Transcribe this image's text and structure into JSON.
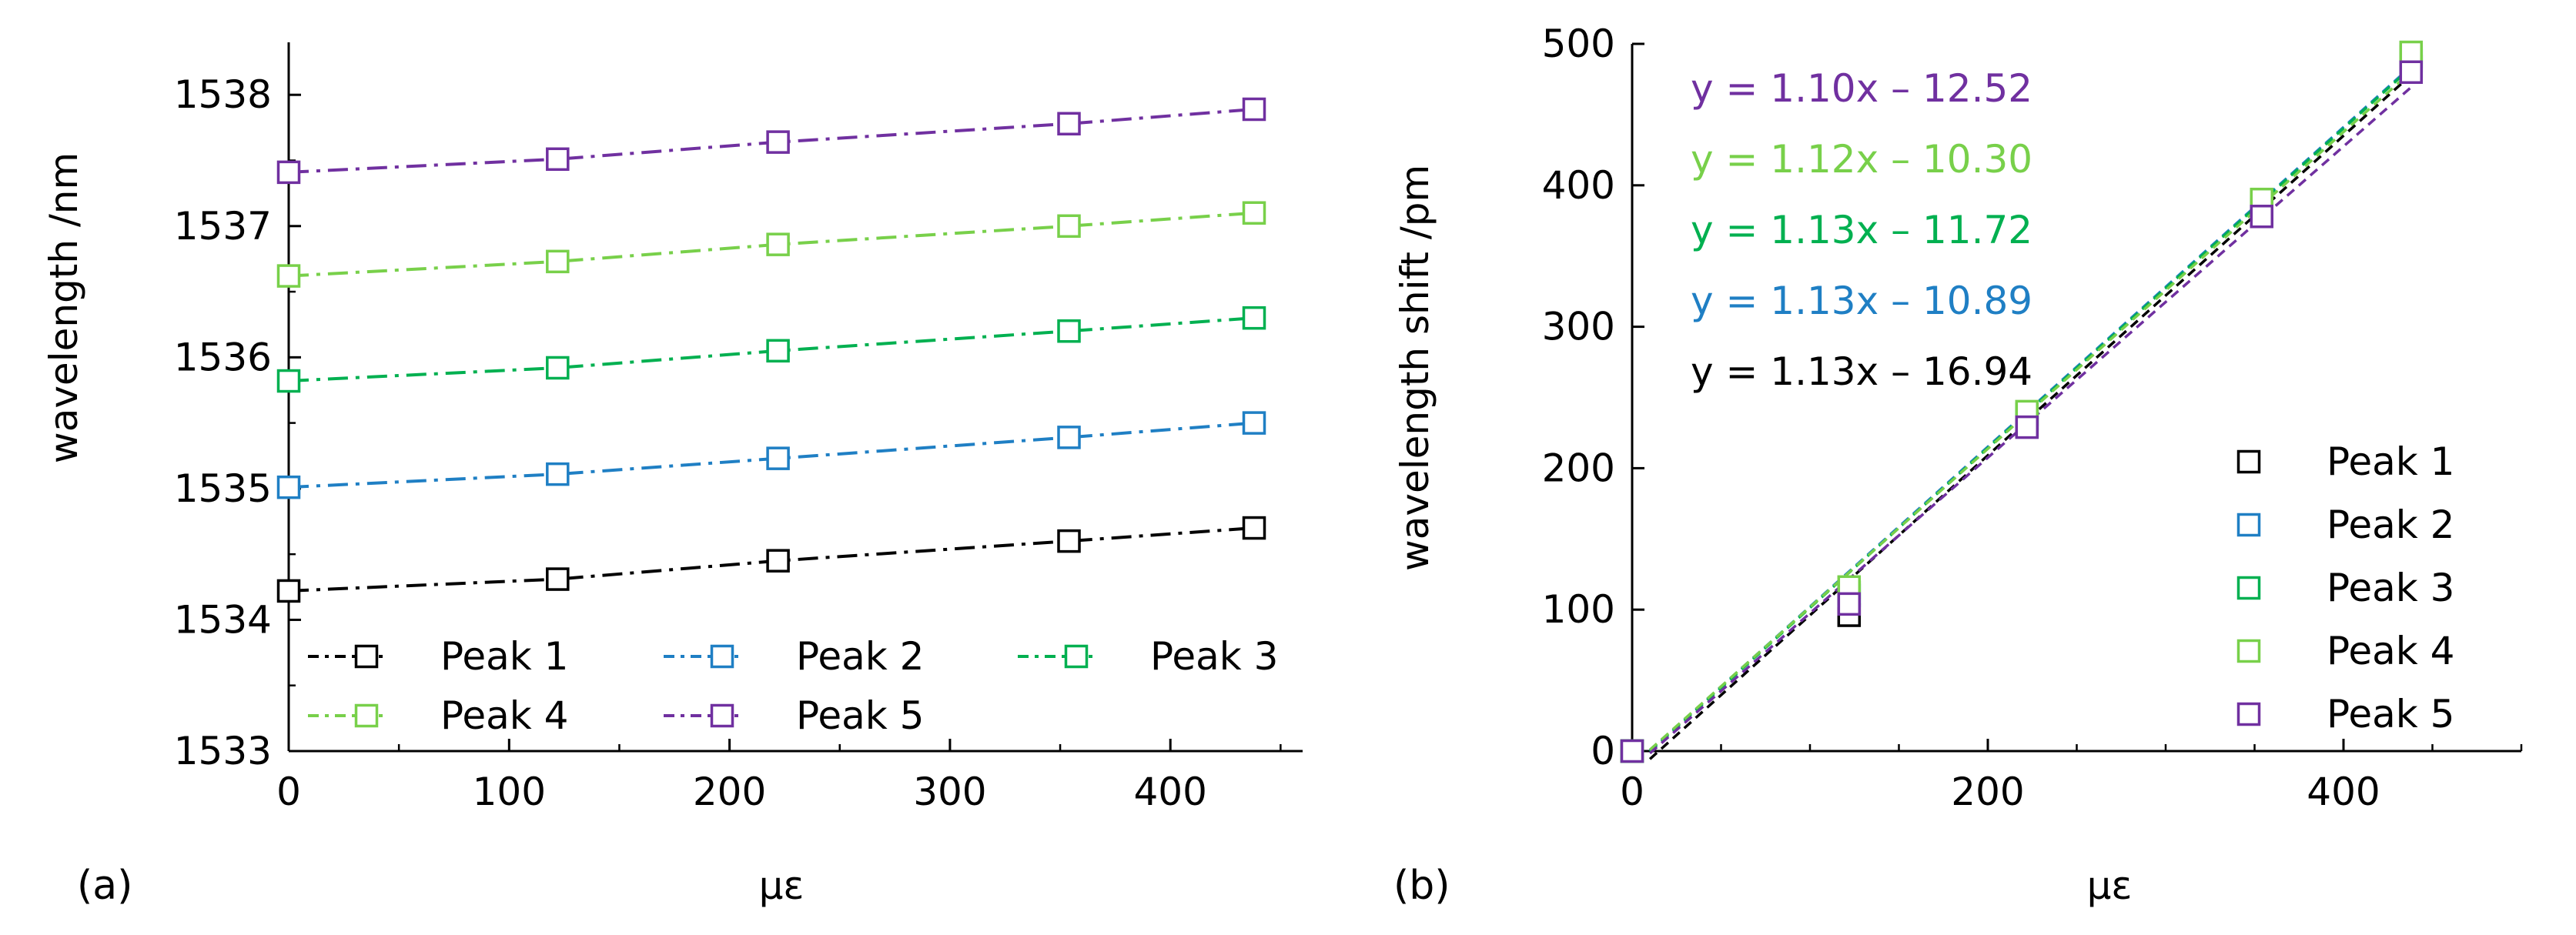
{
  "colors": {
    "peak1": "#000000",
    "peak2": "#1f7fc4",
    "peak3": "#00b050",
    "peak4": "#78d04a",
    "peak5": "#7030a0",
    "axis": "#000000",
    "background": "#ffffff"
  },
  "chart_data": [
    {
      "panel_label": "(a)",
      "type": "line",
      "title": "",
      "xlabel": "με",
      "ylabel": "wavelength /nm",
      "xlim": [
        0,
        460
      ],
      "ylim": [
        1533,
        1538.4
      ],
      "xticks": [
        0,
        100,
        200,
        300,
        400
      ],
      "xtick_labels": [
        "0",
        "100",
        "200",
        "300",
        "400"
      ],
      "yticks": [
        1533,
        1534,
        1535,
        1536,
        1537,
        1538
      ],
      "ytick_labels": [
        "1533",
        "1534",
        "1535",
        "1536",
        "1537",
        "1538"
      ],
      "marker": "open-square",
      "linestyle": "dash-dot",
      "legend_position": "bottom",
      "x": [
        0,
        122,
        222,
        354,
        438
      ],
      "series": [
        {
          "name": "Peak 1",
          "color_key": "peak1",
          "values": [
            1534.22,
            1534.31,
            1534.45,
            1534.6,
            1534.7
          ]
        },
        {
          "name": "Peak 2",
          "color_key": "peak2",
          "values": [
            1535.01,
            1535.11,
            1535.23,
            1535.39,
            1535.5
          ]
        },
        {
          "name": "Peak 3",
          "color_key": "peak3",
          "values": [
            1535.82,
            1535.92,
            1536.05,
            1536.2,
            1536.3
          ]
        },
        {
          "name": "Peak 4",
          "color_key": "peak4",
          "values": [
            1536.62,
            1536.73,
            1536.86,
            1537.0,
            1537.1
          ]
        },
        {
          "name": "Peak 5",
          "color_key": "peak5",
          "values": [
            1537.41,
            1537.51,
            1537.64,
            1537.78,
            1537.89
          ]
        }
      ]
    },
    {
      "panel_label": "(b)",
      "type": "scatter",
      "title": "",
      "xlabel": "με",
      "ylabel": "wavelength shift /pm",
      "xlim": [
        0,
        500
      ],
      "ylim": [
        0,
        500
      ],
      "xticks": [
        0,
        200,
        400
      ],
      "xtick_labels": [
        "0",
        "200",
        "400"
      ],
      "x_minor_ticks": [
        50,
        100,
        150,
        250,
        300,
        350,
        450,
        500
      ],
      "yticks": [
        0,
        100,
        200,
        300,
        400,
        500
      ],
      "ytick_labels": [
        "0",
        "100",
        "200",
        "300",
        "400",
        "500"
      ],
      "marker": "open-square",
      "fit_linestyle": "dashed",
      "legend_position": "bottom-right",
      "x": [
        0,
        122,
        222,
        354,
        438
      ],
      "series": [
        {
          "name": "Peak 1",
          "color_key": "peak1",
          "values": [
            0,
            96,
            230,
            383,
            484
          ],
          "fit": {
            "slope": 1.13,
            "intercept": -16.94,
            "equation": "y = 1.13x – 16.94"
          }
        },
        {
          "name": "Peak 2",
          "color_key": "peak2",
          "values": [
            0,
            110,
            235,
            385,
            488
          ],
          "fit": {
            "slope": 1.13,
            "intercept": -10.89,
            "equation": "y = 1.13x – 10.89"
          }
        },
        {
          "name": "Peak 3",
          "color_key": "peak3",
          "values": [
            0,
            112,
            238,
            388,
            491
          ],
          "fit": {
            "slope": 1.13,
            "intercept": -11.72,
            "equation": "y = 1.13x – 11.72"
          }
        },
        {
          "name": "Peak 4",
          "color_key": "peak4",
          "values": [
            0,
            116,
            240,
            390,
            494
          ],
          "fit": {
            "slope": 1.12,
            "intercept": -10.3,
            "equation": "y = 1.12x – 10.30"
          }
        },
        {
          "name": "Peak 5",
          "color_key": "peak5",
          "values": [
            0,
            104,
            229,
            378,
            480
          ],
          "fit": {
            "slope": 1.1,
            "intercept": -12.52,
            "equation": "y = 1.10x – 12.52"
          }
        }
      ],
      "equation_order": [
        "Peak 5",
        "Peak 4",
        "Peak 3",
        "Peak 2",
        "Peak 1"
      ]
    }
  ]
}
